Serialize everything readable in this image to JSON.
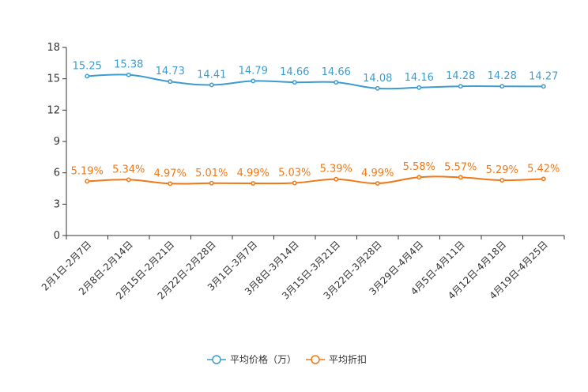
{
  "chart_data": {
    "type": "line",
    "categories": [
      "2月1日-2月7日",
      "2月8日-2月14日",
      "2月15日-2月21日",
      "2月22日-2月28日",
      "3月1日-3月7日",
      "3月8日-3月14日",
      "3月15日-3月21日",
      "3月22日-3月28日",
      "3月29日-4月4日",
      "4月5日-4月11日",
      "4月12日-4月18日",
      "4月19日-4月25日"
    ],
    "ylim": [
      0,
      18
    ],
    "yticks": [
      "0",
      "3",
      "6",
      "9",
      "12",
      "15",
      "18"
    ],
    "series": [
      {
        "name": "平均价格（万）",
        "color": "#3d9ccf",
        "values": [
          15.25,
          15.38,
          14.73,
          14.41,
          14.79,
          14.66,
          14.66,
          14.08,
          14.16,
          14.28,
          14.28,
          14.27
        ],
        "labels": [
          "15.25",
          "15.38",
          "14.73",
          "14.41",
          "14.79",
          "14.66",
          "14.66",
          "14.08",
          "14.16",
          "14.28",
          "14.28",
          "14.27"
        ]
      },
      {
        "name": "平均折扣",
        "color": "#f07818",
        "values": [
          5.19,
          5.34,
          4.97,
          5.01,
          4.99,
          5.03,
          5.39,
          4.99,
          5.58,
          5.57,
          5.29,
          5.42
        ],
        "labels": [
          "5.19%",
          "5.34%",
          "4.97%",
          "5.01%",
          "4.99%",
          "5.03%",
          "5.39%",
          "4.99%",
          "5.58%",
          "5.57%",
          "5.29%",
          "5.42%"
        ]
      }
    ]
  }
}
